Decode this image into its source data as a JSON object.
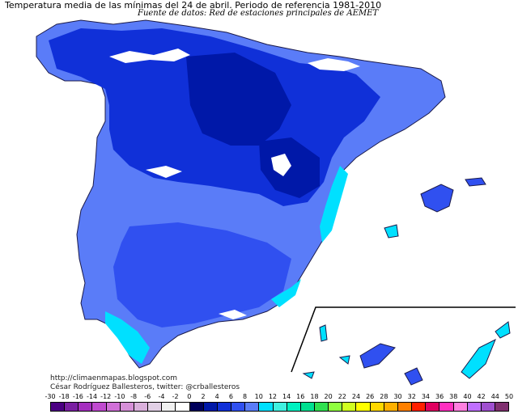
{
  "map": {
    "title": "Temperatura media de las mínimas del 24 de abril. Periodo de referencia 1981-2010",
    "subtitle": "Fuente de datos: Red de estaciones principales de AEMET",
    "region_peninsula": "España peninsular y Baleares",
    "region_canarias": "Islas Canarias",
    "credit_url": "http://climaenmapas.blogspot.com",
    "credit_author": "César Rodríguez Ballesteros, twitter: @crballesteros"
  },
  "legend": {
    "labels": [
      "-30",
      "-18",
      "-16",
      "-14",
      "-12",
      "-10",
      "-8",
      "-6",
      "-4",
      "-2",
      "0",
      "2",
      "4",
      "6",
      "8",
      "10",
      "12",
      "14",
      "16",
      "18",
      "20",
      "22",
      "24",
      "26",
      "28",
      "30",
      "32",
      "34",
      "36",
      "38",
      "40",
      "42",
      "44",
      "50"
    ],
    "colors": [
      "#4b0082",
      "#7a1fa2",
      "#a52fc0",
      "#c04ad0",
      "#d070d8",
      "#d690d8",
      "#dab0dc",
      "#e2d0e6",
      "#f0f0f0",
      "#ffffff",
      "#00005a",
      "#0018a8",
      "#1030d8",
      "#3050f0",
      "#5a7cf8",
      "#00e0ff",
      "#40f0e0",
      "#00f0c0",
      "#00e090",
      "#30e050",
      "#90ff40",
      "#d0ff20",
      "#ffff00",
      "#ffd800",
      "#ffb000",
      "#ff8000",
      "#ff2000",
      "#e00060",
      "#ff30c0",
      "#ff80e0",
      "#c070ff",
      "#a050d0",
      "#803070"
    ]
  }
}
